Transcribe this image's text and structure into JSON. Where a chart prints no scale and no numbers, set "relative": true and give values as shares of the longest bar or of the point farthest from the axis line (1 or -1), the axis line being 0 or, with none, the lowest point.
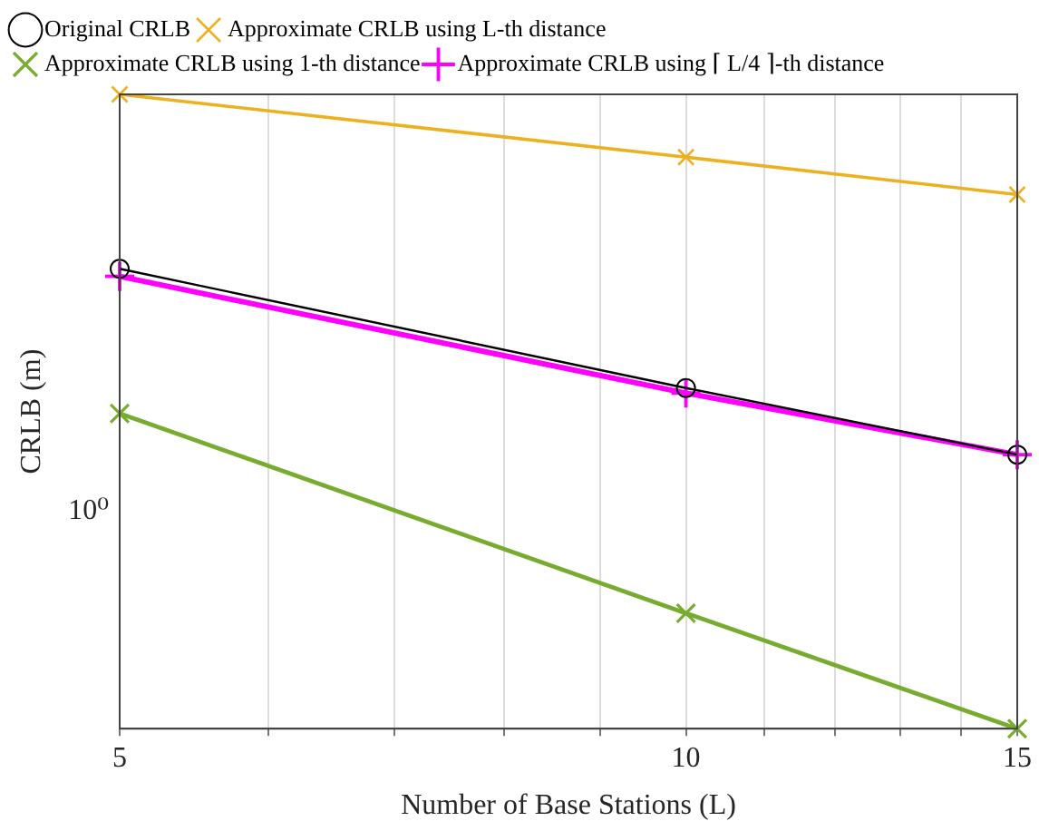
{
  "chart_data": {
    "type": "line",
    "xlabel": "Number of Base Stations (L)",
    "ylabel": "CRLB (m)",
    "relative": true,
    "annotations": [
      "10⁰"
    ],
    "x": [
      5,
      10,
      15
    ],
    "series": [
      {
        "name": "Original CRLB",
        "color": "#000000",
        "marker": "circle",
        "values": [
          0.725,
          0.537,
          0.432
        ]
      },
      {
        "name": "Approximate CRLB using L-th distance",
        "color": "#edb120",
        "marker": "cross",
        "values": [
          1,
          0.901,
          0.842
        ]
      },
      {
        "name": "Approximate CRLB using 1-th distance",
        "color": "#77ac30",
        "marker": "cross",
        "values": [
          0.497,
          0.182,
          0
        ]
      },
      {
        "name": "Approximate CRLB using ⌈ L/4 ⌉-th distance",
        "color": "#ff00ff",
        "marker": "plus",
        "values": [
          0.713,
          0.529,
          0.432
        ]
      }
    ],
    "xlim": [
      5,
      15
    ],
    "xticks": [
      5,
      {
        "value": 6,
        "label": null
      },
      {
        "value": 7,
        "label": null
      },
      {
        "value": 8,
        "label": null
      },
      {
        "value": 9,
        "label": null
      },
      10,
      {
        "value": 11,
        "label": null
      },
      {
        "value": 12,
        "label": null
      },
      {
        "value": 13,
        "label": null
      },
      {
        "value": 14,
        "label": null
      },
      15
    ],
    "log": "x",
    "grid": "x",
    "legend": "top",
    "line_style": "solid"
  }
}
